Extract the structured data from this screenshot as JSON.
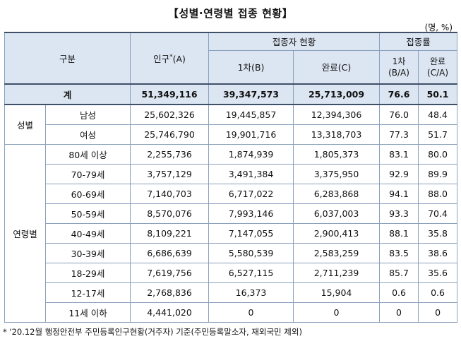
{
  "title": "【성별·연령별 접종 현황】",
  "unit": "(명, %)",
  "header": {
    "category": "구분",
    "population": "인구",
    "population_mark": "*",
    "population_suffix": "(A)",
    "status_group": "접종자 현황",
    "first": "1차(B)",
    "complete": "완료(C)",
    "rate_group": "접종률",
    "rate_first": "1차",
    "rate_first_sub": "(B/A)",
    "rate_complete": "완료",
    "rate_complete_sub": "(C/A)"
  },
  "total": {
    "label": "계",
    "population": "51,349,116",
    "first": "39,347,573",
    "complete": "25,713,009",
    "rate_first": "76.6",
    "rate_complete": "50.1"
  },
  "sex_group": "성별",
  "sex_rows": [
    {
      "label": "남성",
      "population": "25,602,326",
      "first": "19,445,857",
      "complete": "12,394,306",
      "rate_first": "76.0",
      "rate_complete": "48.4"
    },
    {
      "label": "여성",
      "population": "25,746,790",
      "first": "19,901,716",
      "complete": "13,318,703",
      "rate_first": "77.3",
      "rate_complete": "51.7"
    }
  ],
  "age_group": "연령별",
  "age_rows": [
    {
      "label": "80세 이상",
      "population": "2,255,736",
      "first": "1,874,939",
      "complete": "1,805,373",
      "rate_first": "83.1",
      "rate_complete": "80.0"
    },
    {
      "label": "70-79세",
      "population": "3,757,129",
      "first": "3,491,384",
      "complete": "3,375,950",
      "rate_first": "92.9",
      "rate_complete": "89.9"
    },
    {
      "label": "60-69세",
      "population": "7,140,703",
      "first": "6,717,022",
      "complete": "6,283,868",
      "rate_first": "94.1",
      "rate_complete": "88.0"
    },
    {
      "label": "50-59세",
      "population": "8,570,076",
      "first": "7,993,146",
      "complete": "6,037,003",
      "rate_first": "93.3",
      "rate_complete": "70.4"
    },
    {
      "label": "40-49세",
      "population": "8,109,221",
      "first": "7,147,055",
      "complete": "2,900,413",
      "rate_first": "88.1",
      "rate_complete": "35.8"
    },
    {
      "label": "30-39세",
      "population": "6,686,639",
      "first": "5,580,539",
      "complete": "2,583,259",
      "rate_first": "83.5",
      "rate_complete": "38.6"
    },
    {
      "label": "18-29세",
      "population": "7,619,756",
      "first": "6,527,115",
      "complete": "2,711,239",
      "rate_first": "85.7",
      "rate_complete": "35.6"
    },
    {
      "label": "12-17세",
      "population": "2,768,836",
      "first": "16,373",
      "complete": "15,904",
      "rate_first": "0.6",
      "rate_complete": "0.6"
    },
    {
      "label": "11세 이하",
      "population": "4,441,020",
      "first": "0",
      "complete": "0",
      "rate_first": "0",
      "rate_complete": "0"
    }
  ],
  "footnote": "* '20.12월 행정안전부 주민등록인구현황(거주자) 기준(주민등록말소자, 재외국민 제외)"
}
